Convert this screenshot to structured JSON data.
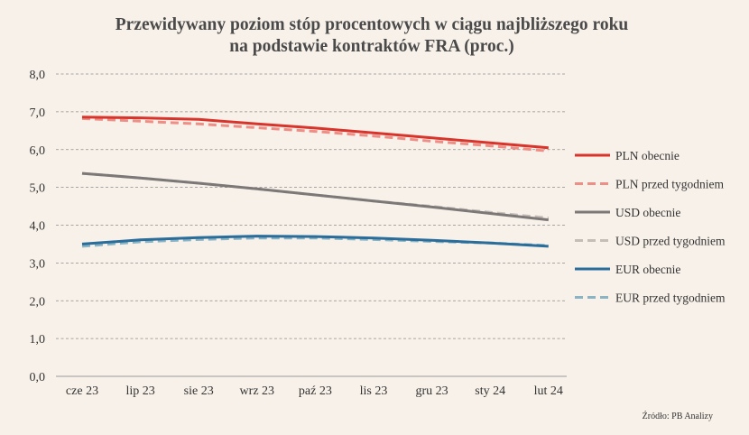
{
  "chart_data": {
    "type": "line",
    "title_lines": [
      "Przewidywany poziom stóp procentowych w ciągu najbliższego roku",
      "na podstawie kontraktów FRA (proc.)"
    ],
    "categories": [
      "cze 23",
      "lip 23",
      "sie 23",
      "wrz 23",
      "paź 23",
      "lis 23",
      "gru 23",
      "sty 24",
      "lut 24"
    ],
    "yticks": [
      "0,0",
      "1,0",
      "2,0",
      "3,0",
      "4,0",
      "5,0",
      "6,0",
      "7,0",
      "8,0"
    ],
    "ylim": [
      0,
      8
    ],
    "grid": true,
    "legend_position": "right",
    "series": [
      {
        "name": "PLN obecnie",
        "color": "#d9342b",
        "dashed": false,
        "values": [
          6.86,
          6.84,
          6.8,
          6.68,
          6.57,
          6.44,
          6.31,
          6.18,
          6.05
        ]
      },
      {
        "name": "PLN przed tygodniem",
        "color": "#ee8f87",
        "dashed": true,
        "values": [
          6.82,
          6.75,
          6.68,
          6.58,
          6.48,
          6.36,
          6.22,
          6.1,
          5.96
        ]
      },
      {
        "name": "USD obecnie",
        "color": "#7d7878",
        "dashed": false,
        "values": [
          5.37,
          5.25,
          5.11,
          4.96,
          4.8,
          4.64,
          4.48,
          4.31,
          4.14
        ]
      },
      {
        "name": "USD przed tygodniem",
        "color": "#c7bdb8",
        "dashed": true,
        "values": [
          5.37,
          5.25,
          5.11,
          4.96,
          4.8,
          4.64,
          4.5,
          4.34,
          4.19
        ]
      },
      {
        "name": "EUR obecnie",
        "color": "#2a6d9a",
        "dashed": false,
        "values": [
          3.5,
          3.61,
          3.67,
          3.71,
          3.7,
          3.66,
          3.6,
          3.53,
          3.44
        ]
      },
      {
        "name": "EUR przed tygodniem",
        "color": "#8ab3c3",
        "dashed": true,
        "values": [
          3.44,
          3.56,
          3.62,
          3.66,
          3.66,
          3.62,
          3.57,
          3.53,
          3.46
        ]
      }
    ],
    "source": "Źródło: PB Analizy"
  }
}
